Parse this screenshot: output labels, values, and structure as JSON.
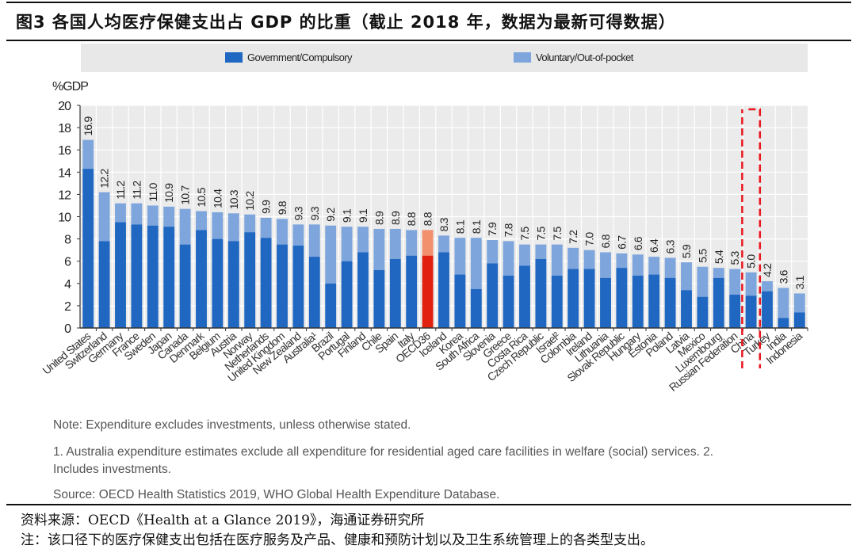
{
  "header": {
    "figure_title": "图3  各国人均医疗保健支出占 GDP 的比重（截止 2018 年，数据为最新可得数据）"
  },
  "colors": {
    "government": "#1f67c1",
    "voluntary": "#7ea6dd",
    "oecd_government": "#e2200f",
    "oecd_voluntary": "#f2906d",
    "plot_bg": "#ebebeb",
    "legend_bg": "#e8e8e8",
    "highlight_box": "#e8141c"
  },
  "chart_data": {
    "type": "bar",
    "stacked": true,
    "title": "",
    "ylabel": "%GDP",
    "xlabel": "",
    "ylim": [
      0,
      20
    ],
    "yticks": [
      0,
      2,
      4,
      6,
      8,
      10,
      12,
      14,
      16,
      18,
      20
    ],
    "grid": true,
    "legend_position": "top",
    "legend": [
      "Government/Compulsory",
      "Voluntary/Out-of-pocket"
    ],
    "categories": [
      "United States",
      "Switzerland",
      "Germany",
      "France",
      "Sweden",
      "Japan",
      "Canada",
      "Denmark",
      "Belgium",
      "Austria",
      "Norway",
      "Netherlands",
      "United Kingdom",
      "New Zealand",
      "Australia¹",
      "Brazil",
      "Portugal",
      "Finland",
      "Chile",
      "Spain",
      "Italy",
      "OECD36",
      "Iceland",
      "Korea",
      "South Africa",
      "Slovenia",
      "Greece",
      "Costa Rica",
      "Czech Republic",
      "Israel²",
      "Colombia",
      "Ireland",
      "Lithuania",
      "Slovak Republic",
      "Hungary",
      "Estonia",
      "Poland",
      "Latvia",
      "Mexico",
      "Luxembourg",
      "Russian Federation",
      "China",
      "Turkey",
      "India",
      "Indonesia"
    ],
    "totals": [
      16.9,
      12.2,
      11.2,
      11.2,
      11.0,
      10.9,
      10.7,
      10.5,
      10.4,
      10.3,
      10.2,
      9.9,
      9.8,
      9.3,
      9.3,
      9.2,
      9.1,
      9.1,
      8.9,
      8.9,
      8.8,
      8.8,
      8.3,
      8.1,
      8.1,
      7.9,
      7.8,
      7.5,
      7.5,
      7.5,
      7.2,
      7.0,
      6.8,
      6.7,
      6.6,
      6.4,
      6.3,
      5.9,
      5.5,
      5.4,
      5.3,
      5.0,
      4.2,
      3.6,
      3.1
    ],
    "total_labels": [
      "16.9",
      "12.2",
      "11.2",
      "11.2",
      "11.0",
      "10.9",
      "10.7",
      "10.5",
      "10.4",
      "10.3",
      "10.2",
      "9.9",
      "9.8",
      "9.3",
      "9.3",
      "9.2",
      "9.1",
      "9.1",
      "8.9",
      "8.9",
      "8.8",
      "8.8",
      "8.3",
      "8.1",
      "8.1",
      "7.9",
      "7.8",
      "7.5",
      "7.5",
      "7.5",
      "7.2",
      "7.0",
      "6.8",
      "6.7",
      "6.6",
      "6.4",
      "6.3",
      "5.9",
      "5.5",
      "5.4",
      "5.3",
      "5.0",
      "4.2",
      "3.6",
      "3.1"
    ],
    "series": [
      {
        "name": "Government/Compulsory",
        "values": [
          14.3,
          7.8,
          9.5,
          9.3,
          9.2,
          9.1,
          7.5,
          8.8,
          8.0,
          7.8,
          8.6,
          8.1,
          7.5,
          7.4,
          6.4,
          4.0,
          6.0,
          6.8,
          5.2,
          6.2,
          6.5,
          6.5,
          6.8,
          4.8,
          3.5,
          5.8,
          4.7,
          5.6,
          6.2,
          4.7,
          5.3,
          5.3,
          4.5,
          5.4,
          4.7,
          4.8,
          4.5,
          3.4,
          2.8,
          4.5,
          3.0,
          2.9,
          3.3,
          0.9,
          1.4
        ]
      },
      {
        "name": "Voluntary/Out-of-pocket",
        "values": [
          2.6,
          4.4,
          1.7,
          1.9,
          1.8,
          1.8,
          3.2,
          1.7,
          2.4,
          2.5,
          1.6,
          1.8,
          2.3,
          1.9,
          2.9,
          5.2,
          3.1,
          2.3,
          3.7,
          2.7,
          2.3,
          2.3,
          1.5,
          3.3,
          4.6,
          2.1,
          3.1,
          1.9,
          1.3,
          2.8,
          1.9,
          1.7,
          2.3,
          1.3,
          1.9,
          1.6,
          1.8,
          2.5,
          2.7,
          0.9,
          2.3,
          2.1,
          0.9,
          2.7,
          1.7
        ]
      }
    ],
    "highlighted_category": "OECD36",
    "boxed_category": "China"
  },
  "notes": {
    "note": "Note: Expenditure excludes investments, unless otherwise stated.",
    "footnote_1": "1. Australia expenditure estimates exclude all expenditure for residential aged care facilities in welfare (social) services. 2.",
    "footnote_2": "Includes investments.",
    "source": "Source: OECD Health Statistics 2019, WHO Global Health Expenditure Database."
  },
  "footer": {
    "data_source": "资料来源：OECD《Health at a Glance 2019》，海通证券研究所",
    "remark": "注：该口径下的医疗保健支出包括在医疗服务及产品、健康和预防计划以及卫生系统管理上的各类型支出。"
  }
}
